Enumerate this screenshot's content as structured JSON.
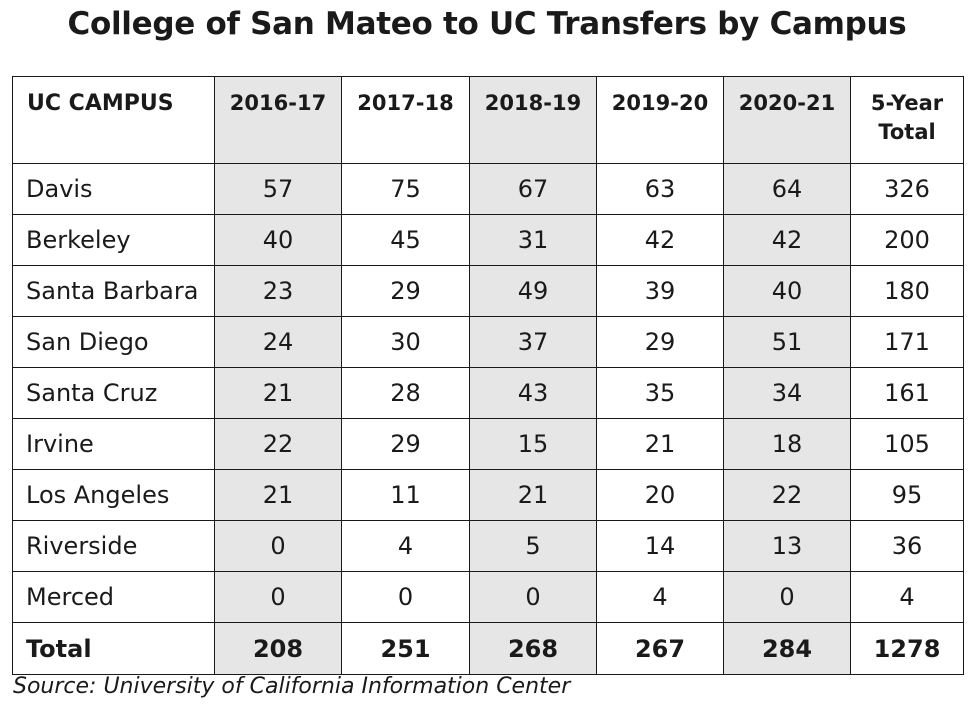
{
  "chart_data": {
    "type": "table",
    "title": "College of San Mateo to UC Transfers by Campus",
    "columns": [
      "UC CAMPUS",
      "2016-17",
      "2017-18",
      "2018-19",
      "2019-20",
      "2020-21",
      "5-Year Total"
    ],
    "shaded_columns": [
      "2016-17",
      "2018-19",
      "2020-21"
    ],
    "shade_color": "#e6e6e6",
    "rows": [
      {
        "campus": "Davis",
        "values": [
          57,
          75,
          67,
          63,
          64
        ],
        "total": 326
      },
      {
        "campus": "Berkeley",
        "values": [
          40,
          45,
          31,
          42,
          42
        ],
        "total": 200
      },
      {
        "campus": "Santa Barbara",
        "values": [
          23,
          29,
          49,
          39,
          40
        ],
        "total": 180
      },
      {
        "campus": "San Diego",
        "values": [
          24,
          30,
          37,
          29,
          51
        ],
        "total": 171
      },
      {
        "campus": "Santa Cruz",
        "values": [
          21,
          28,
          43,
          35,
          34
        ],
        "total": 161
      },
      {
        "campus": "Irvine",
        "values": [
          22,
          29,
          15,
          21,
          18
        ],
        "total": 105
      },
      {
        "campus": "Los Angeles",
        "values": [
          21,
          11,
          21,
          20,
          22
        ],
        "total": 95
      },
      {
        "campus": "Riverside",
        "values": [
          0,
          4,
          5,
          14,
          13
        ],
        "total": 36
      },
      {
        "campus": "Merced",
        "values": [
          0,
          0,
          0,
          4,
          0
        ],
        "total": 4
      }
    ],
    "footer": {
      "campus": "Total",
      "values": [
        208,
        251,
        268,
        267,
        284
      ],
      "total": 1278
    },
    "source": "Source: University of California Information Center"
  }
}
